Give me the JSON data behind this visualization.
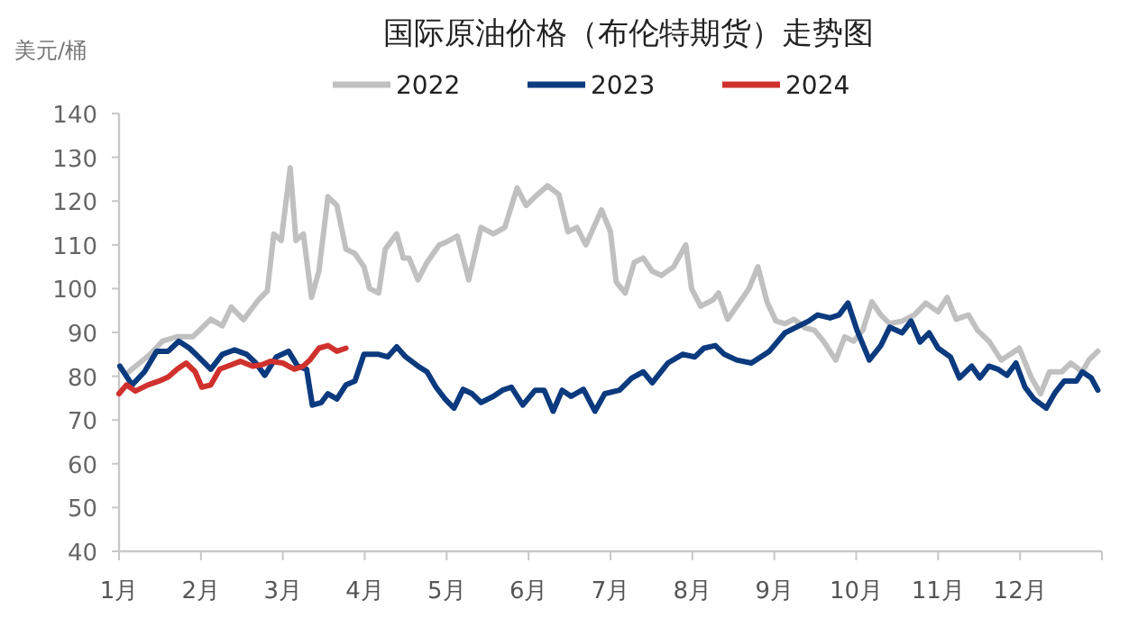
{
  "chart_data": {
    "type": "line",
    "title": "国际原油价格（布伦特期货）走势图",
    "ylabel": "美元/桶",
    "xlim": [
      1,
      13
    ],
    "xticks": [
      {
        "value": 1,
        "label": "1月"
      },
      {
        "value": 2,
        "label": "2月"
      },
      {
        "value": 3,
        "label": "3月"
      },
      {
        "value": 4,
        "label": "4月"
      },
      {
        "value": 5,
        "label": "5月"
      },
      {
        "value": 6,
        "label": "6月"
      },
      {
        "value": 7,
        "label": "7月"
      },
      {
        "value": 8,
        "label": "8月"
      },
      {
        "value": 9,
        "label": "9月"
      },
      {
        "value": 10,
        "label": "10月"
      },
      {
        "value": 11,
        "label": "11月"
      },
      {
        "value": 12,
        "label": "12月"
      },
      {
        "value": 13,
        "label": null
      }
    ],
    "ylim": [
      40,
      140
    ],
    "yticks": [
      40,
      50,
      60,
      70,
      80,
      90,
      100,
      110,
      120,
      130,
      140
    ],
    "grid": false,
    "legend": "top",
    "series": [
      {
        "name": "2022",
        "color": "#c0c0c0",
        "x": [
          1.12,
          1.38,
          1.53,
          1.71,
          1.9,
          2.12,
          2.26,
          2.37,
          2.52,
          2.7,
          2.81,
          2.89,
          2.98,
          3.09,
          3.16,
          3.25,
          3.35,
          3.44,
          3.55,
          3.66,
          3.77,
          3.88,
          3.99,
          4.06,
          4.17,
          4.25,
          4.39,
          4.47,
          4.54,
          4.65,
          4.76,
          4.91,
          4.98,
          5.13,
          5.27,
          5.42,
          5.57,
          5.71,
          5.86,
          5.97,
          6.08,
          6.23,
          6.37,
          6.48,
          6.59,
          6.7,
          6.89,
          7.0,
          7.07,
          7.18,
          7.29,
          7.4,
          7.51,
          7.62,
          7.77,
          7.92,
          7.99,
          8.1,
          8.25,
          8.32,
          8.43,
          8.58,
          8.69,
          8.8,
          8.91,
          9.02,
          9.13,
          9.24,
          9.38,
          9.49,
          9.6,
          9.75,
          9.86,
          9.97,
          10.08,
          10.19,
          10.3,
          10.41,
          10.56,
          10.71,
          10.85,
          11.0,
          11.11,
          11.22,
          11.37,
          11.48,
          11.62,
          11.77,
          11.88,
          11.99,
          12.14,
          12.25,
          12.36,
          12.51,
          12.62,
          12.76,
          12.84,
          12.95
        ],
        "values": [
          81,
          85,
          88,
          89,
          89,
          93,
          91.5,
          95.8,
          92.9,
          97.4,
          99.5,
          112.5,
          111,
          127.6,
          111,
          112.5,
          98,
          104,
          121,
          119,
          109,
          108,
          105,
          100,
          99,
          109,
          112.5,
          107,
          107,
          102,
          106,
          110,
          110.5,
          112,
          102,
          114,
          112.5,
          114,
          123,
          119,
          121,
          123.5,
          121.5,
          113,
          114,
          110,
          118,
          113,
          101.5,
          99,
          106,
          107,
          104,
          103,
          105,
          110,
          100,
          96,
          97.4,
          99,
          93,
          97,
          100,
          105,
          97,
          92.6,
          92,
          93,
          91,
          90.5,
          88,
          83.7,
          89,
          88,
          90.5,
          97,
          94,
          92,
          92.6,
          94,
          96.7,
          94.7,
          98,
          93,
          94,
          90.5,
          88,
          83.7,
          85,
          86.4,
          79.6,
          76,
          81,
          81,
          83,
          81,
          83.7,
          85.7
        ]
      },
      {
        "name": "2023",
        "color": "#0b3a7e",
        "x": [
          1.01,
          1.16,
          1.31,
          1.46,
          1.6,
          1.73,
          1.86,
          1.97,
          2.12,
          2.26,
          2.41,
          2.56,
          2.67,
          2.78,
          2.92,
          3.07,
          3.18,
          3.29,
          3.36,
          3.47,
          3.55,
          3.66,
          3.77,
          3.88,
          3.99,
          4.17,
          4.28,
          4.39,
          4.5,
          4.65,
          4.76,
          4.87,
          4.98,
          5.09,
          5.2,
          5.31,
          5.42,
          5.57,
          5.68,
          5.79,
          5.93,
          6.08,
          6.19,
          6.3,
          6.41,
          6.52,
          6.67,
          6.81,
          6.93,
          7.11,
          7.26,
          7.4,
          7.51,
          7.7,
          7.88,
          8.03,
          8.14,
          8.28,
          8.39,
          8.54,
          8.72,
          8.94,
          9.13,
          9.27,
          9.42,
          9.53,
          9.68,
          9.79,
          9.9,
          10.01,
          10.16,
          10.3,
          10.41,
          10.56,
          10.67,
          10.78,
          10.89,
          11.0,
          11.15,
          11.26,
          11.41,
          11.51,
          11.62,
          11.73,
          11.84,
          11.95,
          12.06,
          12.17,
          12.32,
          12.43,
          12.54,
          12.69,
          12.76,
          12.87,
          12.95
        ],
        "values": [
          82.3,
          78,
          81,
          85.7,
          85.7,
          88,
          86.4,
          84.4,
          81.6,
          85,
          86,
          85,
          83,
          80.2,
          84.4,
          85.7,
          82.3,
          81.6,
          73.4,
          74,
          76,
          74.8,
          78,
          78.9,
          85,
          85,
          84.4,
          86.7,
          84.4,
          82.3,
          81,
          77.5,
          74.8,
          72.7,
          77,
          76,
          74,
          75.4,
          76.8,
          77.5,
          73.4,
          76.8,
          76.8,
          72,
          76.8,
          75.4,
          77,
          72,
          76,
          76.8,
          79.6,
          81,
          78.5,
          83,
          85,
          84.4,
          86.4,
          87,
          85,
          83.7,
          83,
          85.7,
          89.9,
          91.2,
          92.6,
          94,
          93.3,
          94,
          96.7,
          90.5,
          83.7,
          87,
          91.2,
          89.9,
          92.6,
          87.8,
          89.9,
          86.4,
          84.4,
          79.6,
          82.3,
          79.6,
          82.3,
          81.6,
          80.2,
          83,
          77.5,
          74.8,
          72.7,
          76.3,
          78.9,
          78.9,
          81,
          79.6,
          76.8
        ]
      },
      {
        "name": "2024",
        "color": "#d0312d",
        "x": [
          1.0,
          1.09,
          1.2,
          1.35,
          1.49,
          1.6,
          1.71,
          1.82,
          1.93,
          2.01,
          2.12,
          2.23,
          2.37,
          2.48,
          2.63,
          2.74,
          2.85,
          3.0,
          3.14,
          3.25,
          3.33,
          3.44,
          3.55,
          3.66,
          3.77
        ],
        "values": [
          76,
          78,
          76.6,
          78,
          78.9,
          79.8,
          81.6,
          83,
          81,
          77.5,
          78,
          81.6,
          82.6,
          83.4,
          82.3,
          82.6,
          83.4,
          83,
          81.6,
          82.3,
          83.7,
          86.4,
          87,
          85.7,
          86.4
        ]
      }
    ]
  }
}
